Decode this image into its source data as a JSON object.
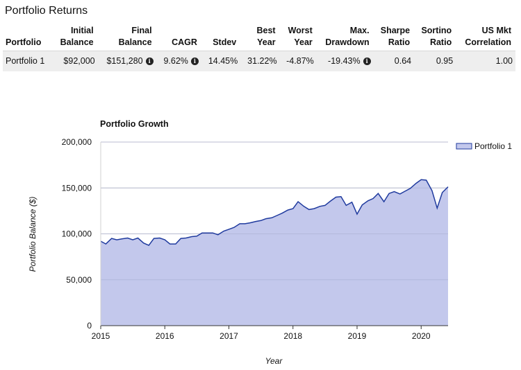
{
  "page": {
    "title": "Portfolio Returns"
  },
  "returns_table": {
    "headers": [
      "Portfolio",
      "Initial\nBalance",
      "Final\nBalance",
      "CAGR",
      "Stdev",
      "Best\nYear",
      "Worst\nYear",
      "Max.\nDrawdown",
      "Sharpe\nRatio",
      "Sortino\nRatio",
      "US Mkt\nCorrelation"
    ],
    "row": {
      "portfolio": "Portfolio 1",
      "initial_balance": "$92,000",
      "final_balance": "$151,280",
      "cagr": "9.62%",
      "stdev": "14.45%",
      "best_year": "31.22%",
      "worst_year": "-4.87%",
      "max_drawdown": "-19.43%",
      "sharpe": "0.64",
      "sortino": "0.95",
      "us_mkt_correlation": "1.00"
    },
    "info_icon": "info-circle-icon"
  },
  "chart_data": {
    "type": "area",
    "title": "Portfolio Growth",
    "xlabel": "Year",
    "ylabel": "Portfolio Balance ($)",
    "xlim": [
      2015,
      2020.42
    ],
    "ylim": [
      0,
      200000
    ],
    "x_ticks": [
      "2015",
      "2016",
      "2017",
      "2018",
      "2019",
      "2020"
    ],
    "y_ticks": [
      "0",
      "50,000",
      "100,000",
      "150,000",
      "200,000"
    ],
    "y_tick_values": [
      0,
      50000,
      100000,
      150000,
      200000
    ],
    "grid": true,
    "legend_position": "top-right",
    "colors": {
      "line": "#1f3a9e",
      "fill": "#c3c8ec"
    },
    "series": [
      {
        "name": "Portfolio 1",
        "x": [
          2015.0,
          2015.08,
          2015.17,
          2015.25,
          2015.33,
          2015.42,
          2015.5,
          2015.58,
          2015.67,
          2015.75,
          2015.83,
          2015.92,
          2016.0,
          2016.08,
          2016.17,
          2016.25,
          2016.33,
          2016.42,
          2016.5,
          2016.58,
          2016.67,
          2016.75,
          2016.83,
          2016.92,
          2017.0,
          2017.08,
          2017.17,
          2017.25,
          2017.33,
          2017.42,
          2017.5,
          2017.58,
          2017.67,
          2017.75,
          2017.83,
          2017.92,
          2018.0,
          2018.08,
          2018.17,
          2018.25,
          2018.33,
          2018.42,
          2018.5,
          2018.58,
          2018.67,
          2018.75,
          2018.83,
          2018.92,
          2019.0,
          2019.08,
          2019.17,
          2019.25,
          2019.33,
          2019.42,
          2019.5,
          2019.58,
          2019.67,
          2019.75,
          2019.83,
          2019.92,
          2020.0,
          2020.08,
          2020.17,
          2020.25,
          2020.33,
          2020.42
        ],
        "values": [
          92000,
          89000,
          95000,
          93500,
          94500,
          95500,
          93500,
          95500,
          90000,
          87500,
          95000,
          95500,
          93500,
          89000,
          89000,
          95000,
          95500,
          97000,
          97500,
          101000,
          101000,
          101000,
          99000,
          103000,
          105000,
          107000,
          111000,
          111000,
          112000,
          113500,
          114500,
          116500,
          117500,
          120000,
          122500,
          126000,
          127500,
          135000,
          130000,
          126500,
          127500,
          130000,
          131000,
          135500,
          140000,
          140500,
          131000,
          134500,
          121500,
          131500,
          136000,
          138500,
          144000,
          135000,
          144000,
          146000,
          143500,
          146500,
          149500,
          155000,
          159000,
          158500,
          147000,
          128000,
          145000,
          151280
        ]
      }
    ]
  }
}
